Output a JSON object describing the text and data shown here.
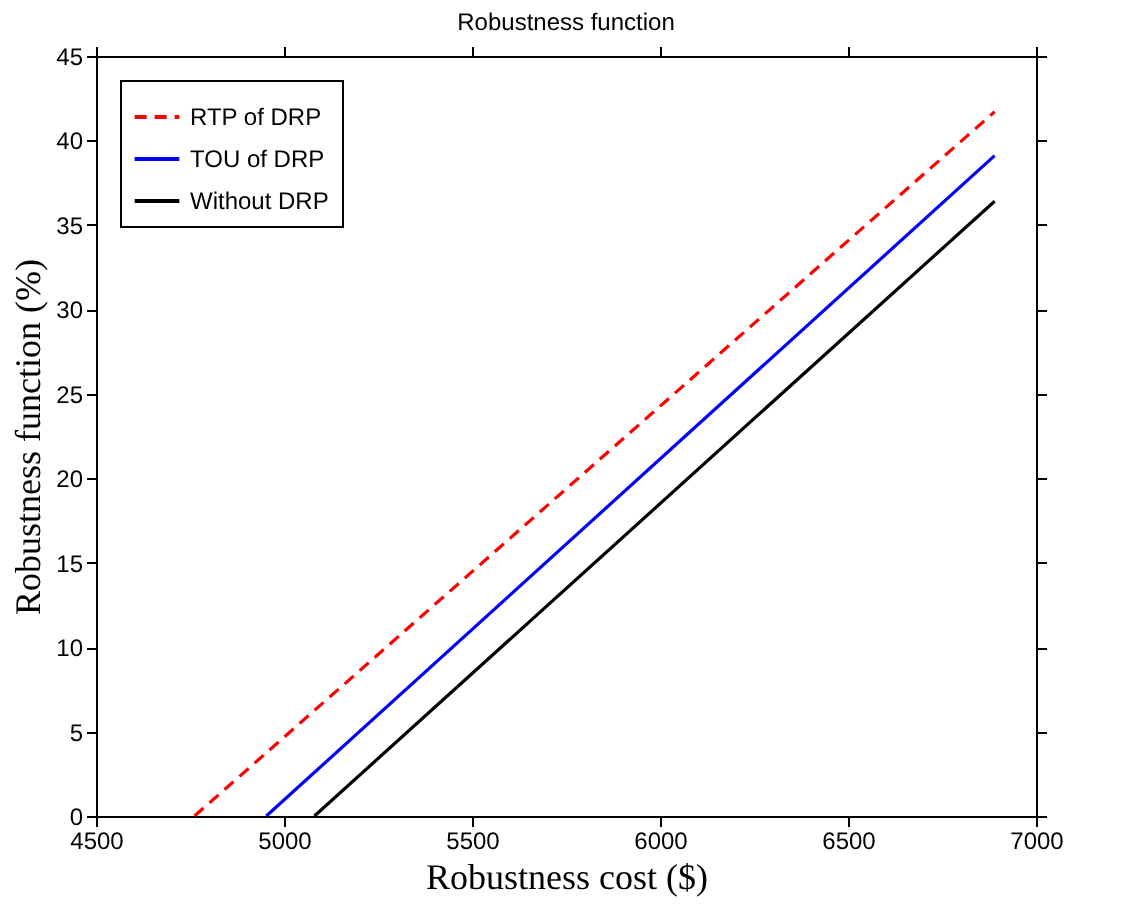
{
  "chart_data": {
    "type": "line",
    "title": "Robustness function",
    "xlabel": "Robustness cost ($)",
    "ylabel": "Robustness function (%)",
    "xlim": [
      4500,
      7000
    ],
    "xticks": [
      4500,
      5000,
      5500,
      6000,
      6500,
      7000
    ],
    "ylim": [
      0,
      45
    ],
    "yticks": [
      0,
      5,
      10,
      15,
      20,
      25,
      30,
      35,
      40,
      45
    ],
    "grid": false,
    "legend": "top left",
    "marker": "none",
    "series": [
      {
        "name": "RTP of DRP",
        "color": "#ff0000",
        "line_style": "dashed",
        "x": [
          4762,
          6890
        ],
        "values": [
          0,
          41.7
        ]
      },
      {
        "name": "TOU of DRP",
        "color": "#0000ff",
        "line_style": "solid",
        "x": [
          4953,
          6890
        ],
        "values": [
          0,
          39.1
        ]
      },
      {
        "name": "Without DRP",
        "color": "#000000",
        "line_style": "solid",
        "x": [
          5081,
          6890
        ],
        "values": [
          0,
          36.4
        ]
      }
    ]
  }
}
